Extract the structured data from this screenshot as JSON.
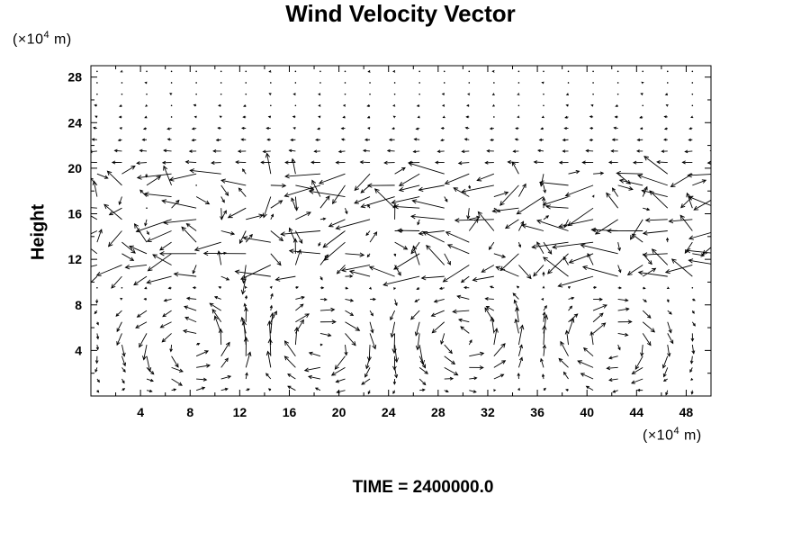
{
  "chart_data": {
    "type": "vector-field",
    "title": "Wind Velocity Vector",
    "ylabel": "Height",
    "y_unit": {
      "pre": "(×10",
      "exp": "4",
      "post": " m)"
    },
    "x_unit": {
      "pre": "(×10",
      "exp": "4",
      "post": " m)"
    },
    "xlim": [
      0,
      50
    ],
    "ylim": [
      0,
      29
    ],
    "x_ticks": [
      4,
      8,
      12,
      16,
      20,
      24,
      28,
      32,
      36,
      40,
      44,
      48
    ],
    "y_ticks": [
      4,
      8,
      12,
      16,
      20,
      24,
      28
    ],
    "x_minor_step": 2,
    "y_minor_step": 2,
    "grid_x": [
      0,
      2,
      4,
      6,
      8,
      10,
      12,
      14,
      16,
      18,
      20,
      22,
      24,
      26,
      28,
      30,
      32,
      34,
      36,
      38,
      40,
      42,
      44,
      46,
      48,
      50
    ],
    "grid_y": [
      0,
      1,
      2,
      3,
      4,
      5,
      6,
      7,
      8,
      9,
      10,
      11,
      12,
      13,
      14,
      15,
      16,
      17,
      18,
      19,
      20,
      21,
      22,
      23,
      24,
      25,
      26,
      27,
      28
    ],
    "vortex_centers": [
      {
        "x": 8,
        "y": 4.5,
        "sense": "ccw"
      },
      {
        "x": 18.5,
        "y": 4.5,
        "sense": "cw"
      },
      {
        "x": 30,
        "y": 5,
        "sense": "ccw"
      },
      {
        "x": 42,
        "y": 4.5,
        "sense": "cw"
      }
    ],
    "grid": false
  },
  "time_label": "TIME = 2400000.0"
}
